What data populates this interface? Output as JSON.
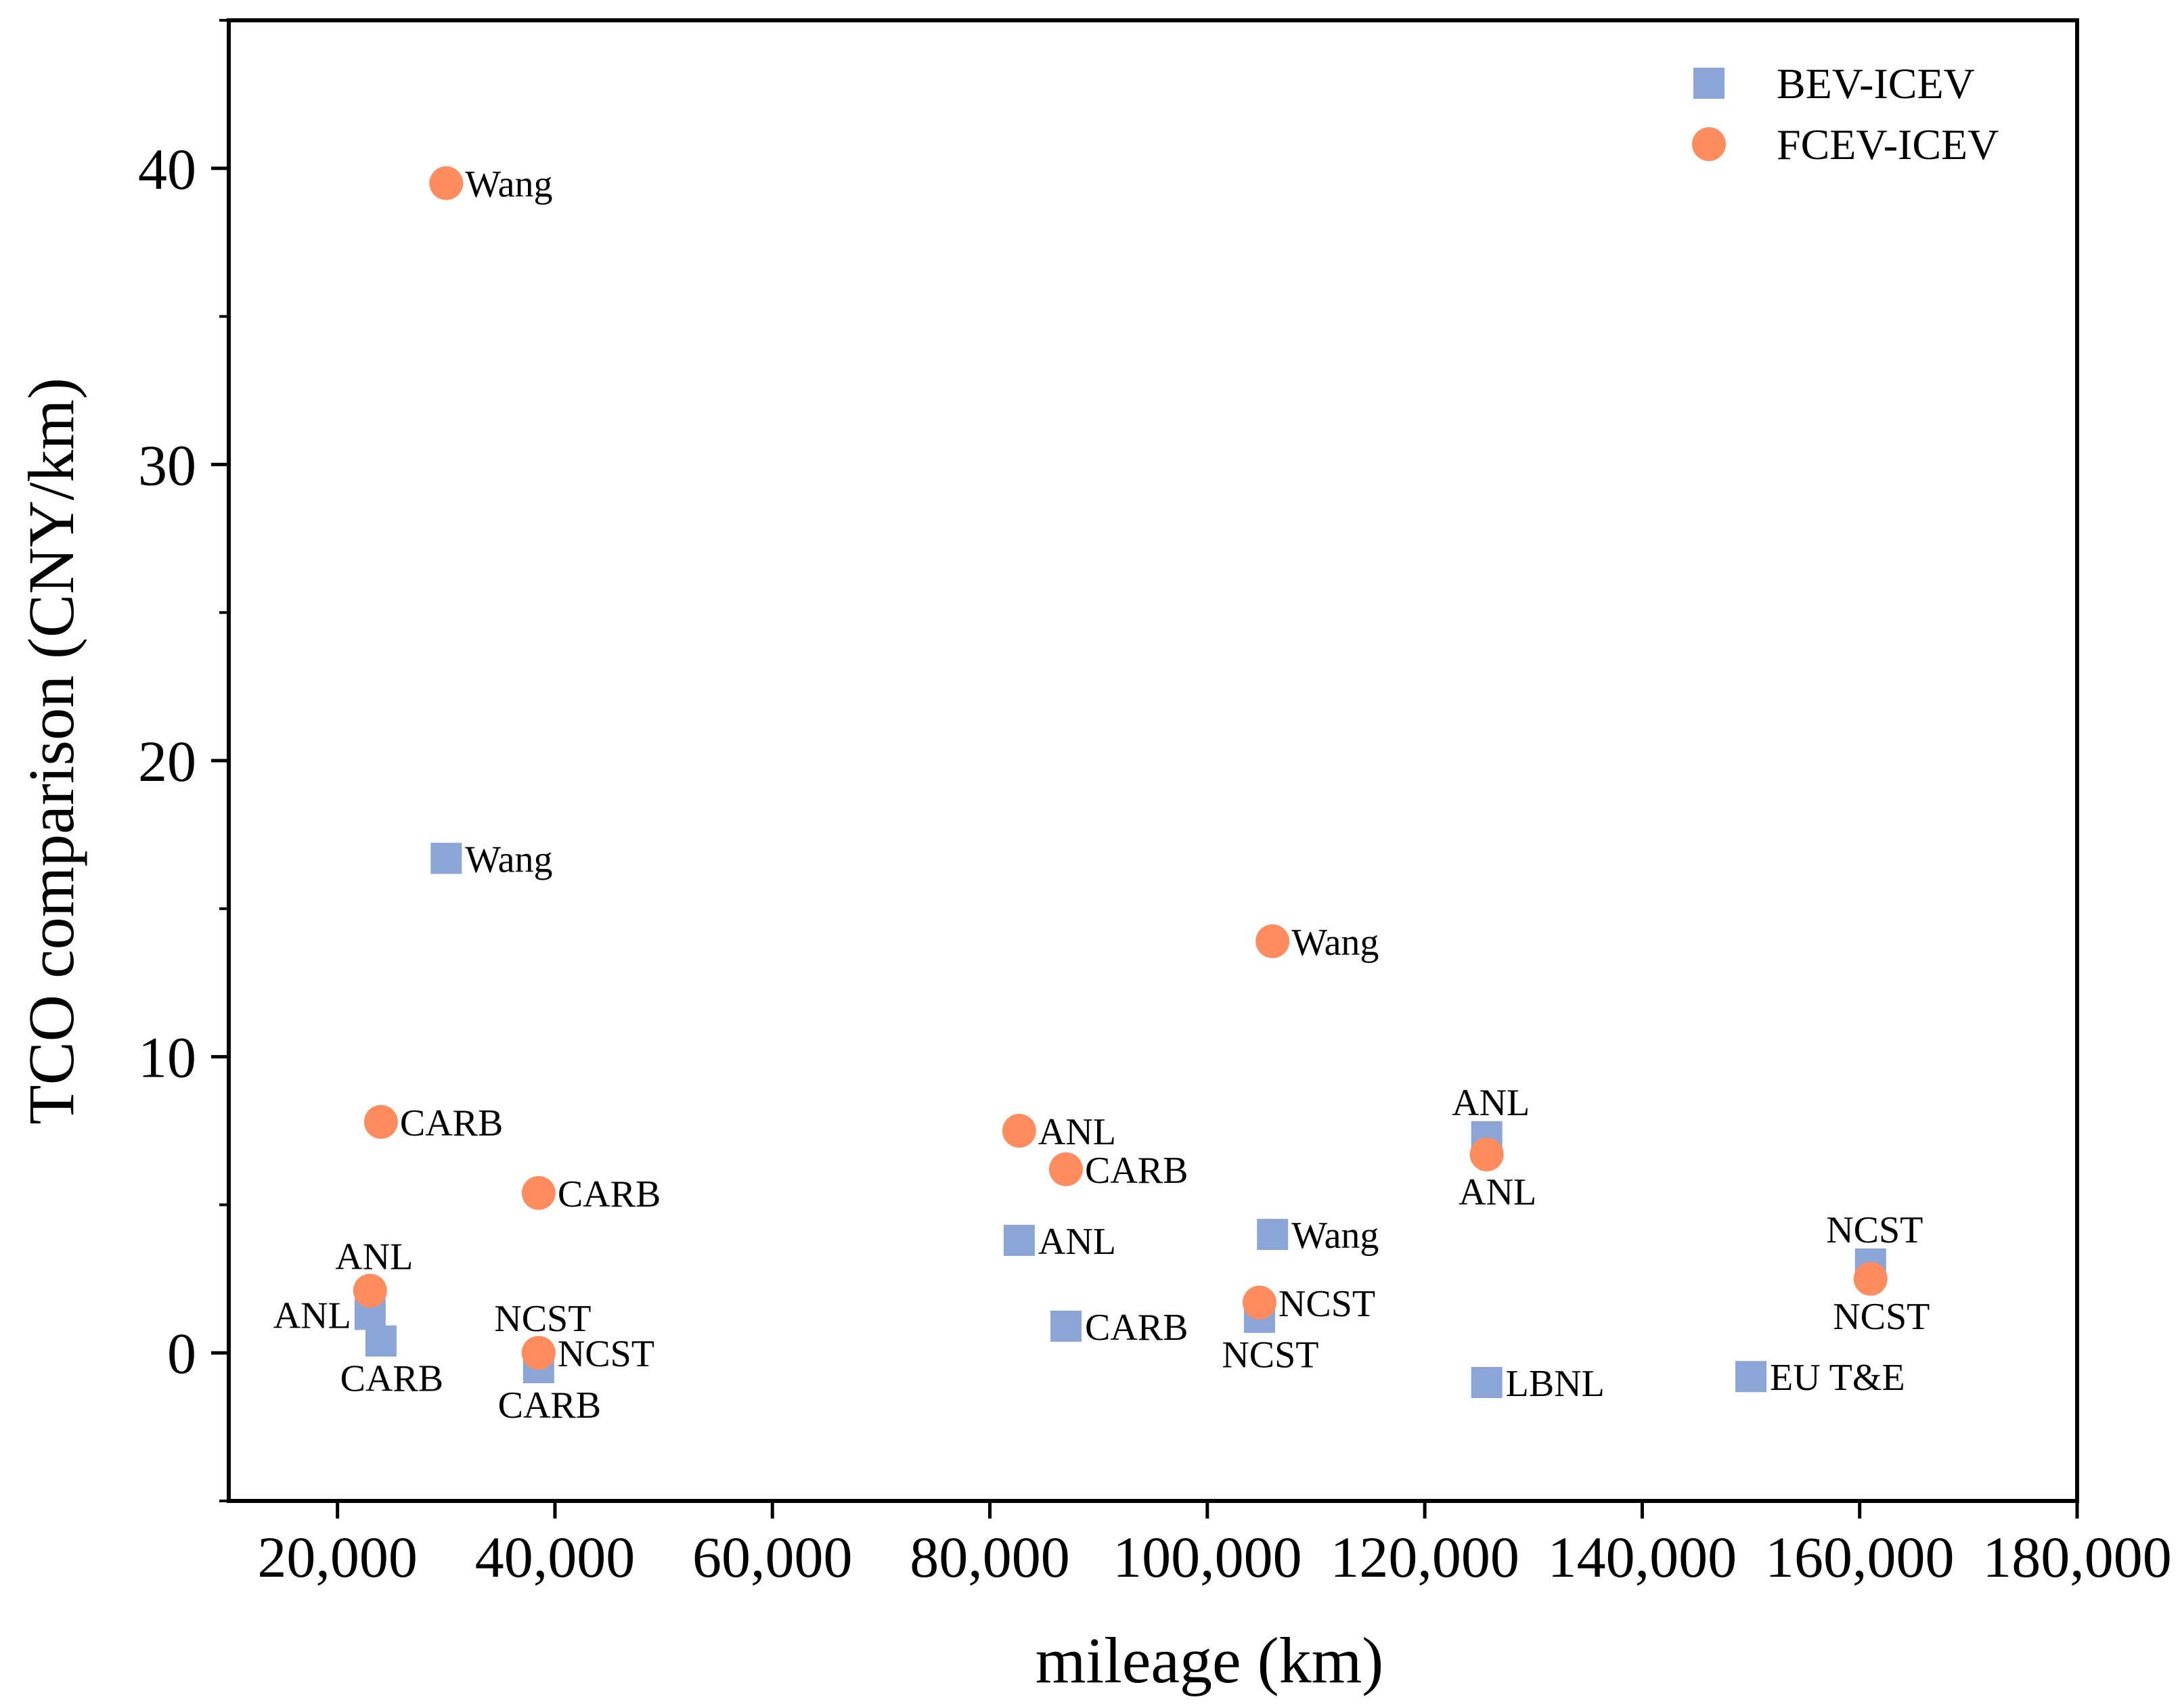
{
  "chart_data": {
    "type": "scatter",
    "title": "",
    "xlabel": "mileage (km)",
    "ylabel": "TCO comparison (CNY/km)",
    "xlim": [
      10000,
      180000
    ],
    "ylim": [
      -5,
      45
    ],
    "xticks": [
      20000,
      40000,
      60000,
      80000,
      100000,
      120000,
      140000,
      160000,
      180000
    ],
    "xtick_labels": [
      "20,000",
      "40,000",
      "60,000",
      "80,000",
      "100,000",
      "120,000",
      "140,000",
      "160,000",
      "180,000"
    ],
    "yticks": [
      0,
      10,
      20,
      30,
      40
    ],
    "ytick_labels": [
      "0",
      "10",
      "20",
      "30",
      "40"
    ],
    "grid": false,
    "legend_position": "top-right",
    "colors": {
      "BEV-ICEV": "#8aa5d6",
      "FCEV-ICEV": "#ff8c5e"
    },
    "series": [
      {
        "name": "BEV-ICEV",
        "marker": "square",
        "points": [
          {
            "x": 30000,
            "y": 16.7,
            "label": "Wang",
            "anchor": "right"
          },
          {
            "x": 23000,
            "y": 1.3,
            "label": "ANL",
            "anchor": "left"
          },
          {
            "x": 24000,
            "y": 0.4,
            "label": "CARB",
            "anchor": "below"
          },
          {
            "x": 38500,
            "y": -0.5,
            "label": "CARB",
            "anchor": "below"
          },
          {
            "x": 82700,
            "y": 3.8,
            "label": "ANL",
            "anchor": "right"
          },
          {
            "x": 87000,
            "y": 0.9,
            "label": "CARB",
            "anchor": "right"
          },
          {
            "x": 106000,
            "y": 4.0,
            "label": "Wang",
            "anchor": "right"
          },
          {
            "x": 104800,
            "y": 1.2,
            "label": "NCST",
            "anchor": "below"
          },
          {
            "x": 125700,
            "y": 7.3,
            "label": "ANL",
            "anchor": "above"
          },
          {
            "x": 125700,
            "y": -1.0,
            "label": "LBNL",
            "anchor": "right"
          },
          {
            "x": 161000,
            "y": 3.0,
            "label": "NCST",
            "anchor": "above"
          },
          {
            "x": 150000,
            "y": -0.8,
            "label": "EU T&E",
            "anchor": "right"
          }
        ]
      },
      {
        "name": "FCEV-ICEV",
        "marker": "circle",
        "points": [
          {
            "x": 30000,
            "y": 39.5,
            "label": "Wang",
            "anchor": "right"
          },
          {
            "x": 24000,
            "y": 7.8,
            "label": "CARB",
            "anchor": "right"
          },
          {
            "x": 38500,
            "y": 5.4,
            "label": "CARB",
            "anchor": "right"
          },
          {
            "x": 23000,
            "y": 2.1,
            "label": "ANL",
            "anchor": "above"
          },
          {
            "x": 38500,
            "y": 0.0,
            "label": "NCST",
            "anchor": "above"
          },
          {
            "x": 38500,
            "y": 0.0,
            "label": "NCST",
            "anchor": "right"
          },
          {
            "x": 82700,
            "y": 7.5,
            "label": "ANL",
            "anchor": "right"
          },
          {
            "x": 87000,
            "y": 6.2,
            "label": "CARB",
            "anchor": "right"
          },
          {
            "x": 106000,
            "y": 13.9,
            "label": "Wang",
            "anchor": "right"
          },
          {
            "x": 104800,
            "y": 1.7,
            "label": "NCST",
            "anchor": "right"
          },
          {
            "x": 125700,
            "y": 6.7,
            "label": "ANL",
            "anchor": "below"
          },
          {
            "x": 161000,
            "y": 2.5,
            "label": "NCST",
            "anchor": "below"
          }
        ]
      }
    ]
  }
}
